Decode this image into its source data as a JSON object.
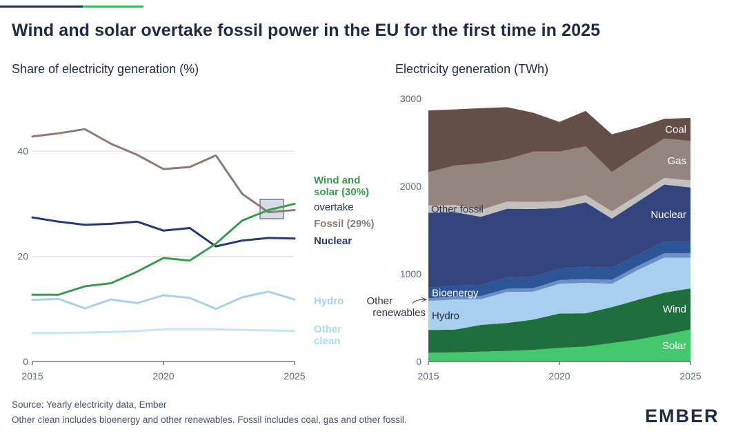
{
  "title": "Wind and solar overtake fossil power in the EU for the first time in 2025",
  "footer": {
    "source": "Source: Yearly electricity data, Ember",
    "note": "Other clean includes bioenergy and other renewables. Fossil includes coal, gas and other fossil."
  },
  "logo": "EMBER",
  "chart_data": [
    {
      "type": "line",
      "title": "Share of electricity generation (%)",
      "x": [
        2015,
        2016,
        2017,
        2018,
        2019,
        2020,
        2021,
        2022,
        2023,
        2024,
        2025
      ],
      "xticks": [
        2015,
        2020,
        2025
      ],
      "ylim": [
        0,
        50
      ],
      "yticks": [
        0,
        20,
        40
      ],
      "grid": true,
      "legend": "direct-labels",
      "highlight_label": "overtake",
      "series": [
        {
          "name": "Fossil (29%)",
          "color": "#8b7b76",
          "values": [
            42.8,
            43.4,
            44.2,
            41.4,
            39.3,
            36.6,
            37.0,
            39.2,
            31.9,
            28.4,
            28.8
          ]
        },
        {
          "name": "Nuclear",
          "color": "#233a78",
          "values": [
            27.4,
            26.6,
            26.0,
            26.2,
            26.6,
            24.9,
            25.4,
            21.9,
            23.0,
            23.5,
            23.4
          ]
        },
        {
          "name": "Wind and solar (30%)",
          "color": "#3a9b4f",
          "values": [
            12.7,
            12.7,
            14.3,
            14.9,
            17.1,
            19.7,
            19.2,
            22.4,
            26.8,
            28.8,
            30.0
          ]
        },
        {
          "name": "Hydro",
          "color": "#a8cfee",
          "values": [
            11.7,
            11.9,
            10.1,
            11.8,
            11.1,
            12.6,
            12.1,
            10.0,
            12.2,
            13.3,
            11.8
          ]
        },
        {
          "name": "Other clean",
          "color": "#c5e6f0",
          "values": [
            5.4,
            5.4,
            5.5,
            5.6,
            5.8,
            6.1,
            6.1,
            6.1,
            6.0,
            5.9,
            5.8
          ]
        }
      ]
    },
    {
      "type": "area",
      "title": "Electricity generation (TWh)",
      "x": [
        2015,
        2016,
        2017,
        2018,
        2019,
        2020,
        2021,
        2022,
        2023,
        2024,
        2025
      ],
      "xticks": [
        2015,
        2020,
        2025
      ],
      "ylim": [
        0,
        3000
      ],
      "yticks": [
        0,
        1000,
        2000,
        3000
      ],
      "stacked": true,
      "grid": false,
      "legend": "direct-labels",
      "series": [
        {
          "name": "Solar",
          "color": "#44c86c",
          "values": [
            100,
            105,
            112,
            120,
            133,
            155,
            170,
            210,
            250,
            305,
            365
          ]
        },
        {
          "name": "Wind",
          "color": "#1f6e3b",
          "values": [
            260,
            258,
            305,
            320,
            345,
            392,
            380,
            410,
            455,
            480,
            470
          ]
        },
        {
          "name": "Hydro",
          "color": "#a8cfee",
          "values": [
            330,
            345,
            293,
            353,
            318,
            340,
            348,
            267,
            340,
            400,
            350
          ]
        },
        {
          "name": "Other renewables",
          "color": "#6b8fc4",
          "values": [
            32,
            34,
            36,
            38,
            40,
            42,
            44,
            46,
            48,
            50,
            52
          ]
        },
        {
          "name": "Bioenergy",
          "color": "#2b5596",
          "values": [
            120,
            123,
            125,
            127,
            130,
            133,
            135,
            138,
            128,
            135,
            130
          ]
        },
        {
          "name": "Nuclear",
          "color": "#34447c",
          "values": [
            855,
            840,
            780,
            785,
            775,
            690,
            740,
            560,
            605,
            650,
            620
          ]
        },
        {
          "name": "Other fossil",
          "color": "#c6c0bd",
          "values": [
            83,
            82,
            80,
            82,
            80,
            78,
            82,
            82,
            75,
            75,
            80
          ]
        },
        {
          "name": "Gas",
          "color": "#938580",
          "values": [
            380,
            450,
            530,
            482,
            575,
            565,
            558,
            450,
            460,
            450,
            450
          ]
        },
        {
          "name": "Coal",
          "color": "#644e48",
          "values": [
            705,
            640,
            630,
            595,
            443,
            340,
            403,
            430,
            310,
            225,
            263
          ]
        }
      ]
    }
  ]
}
